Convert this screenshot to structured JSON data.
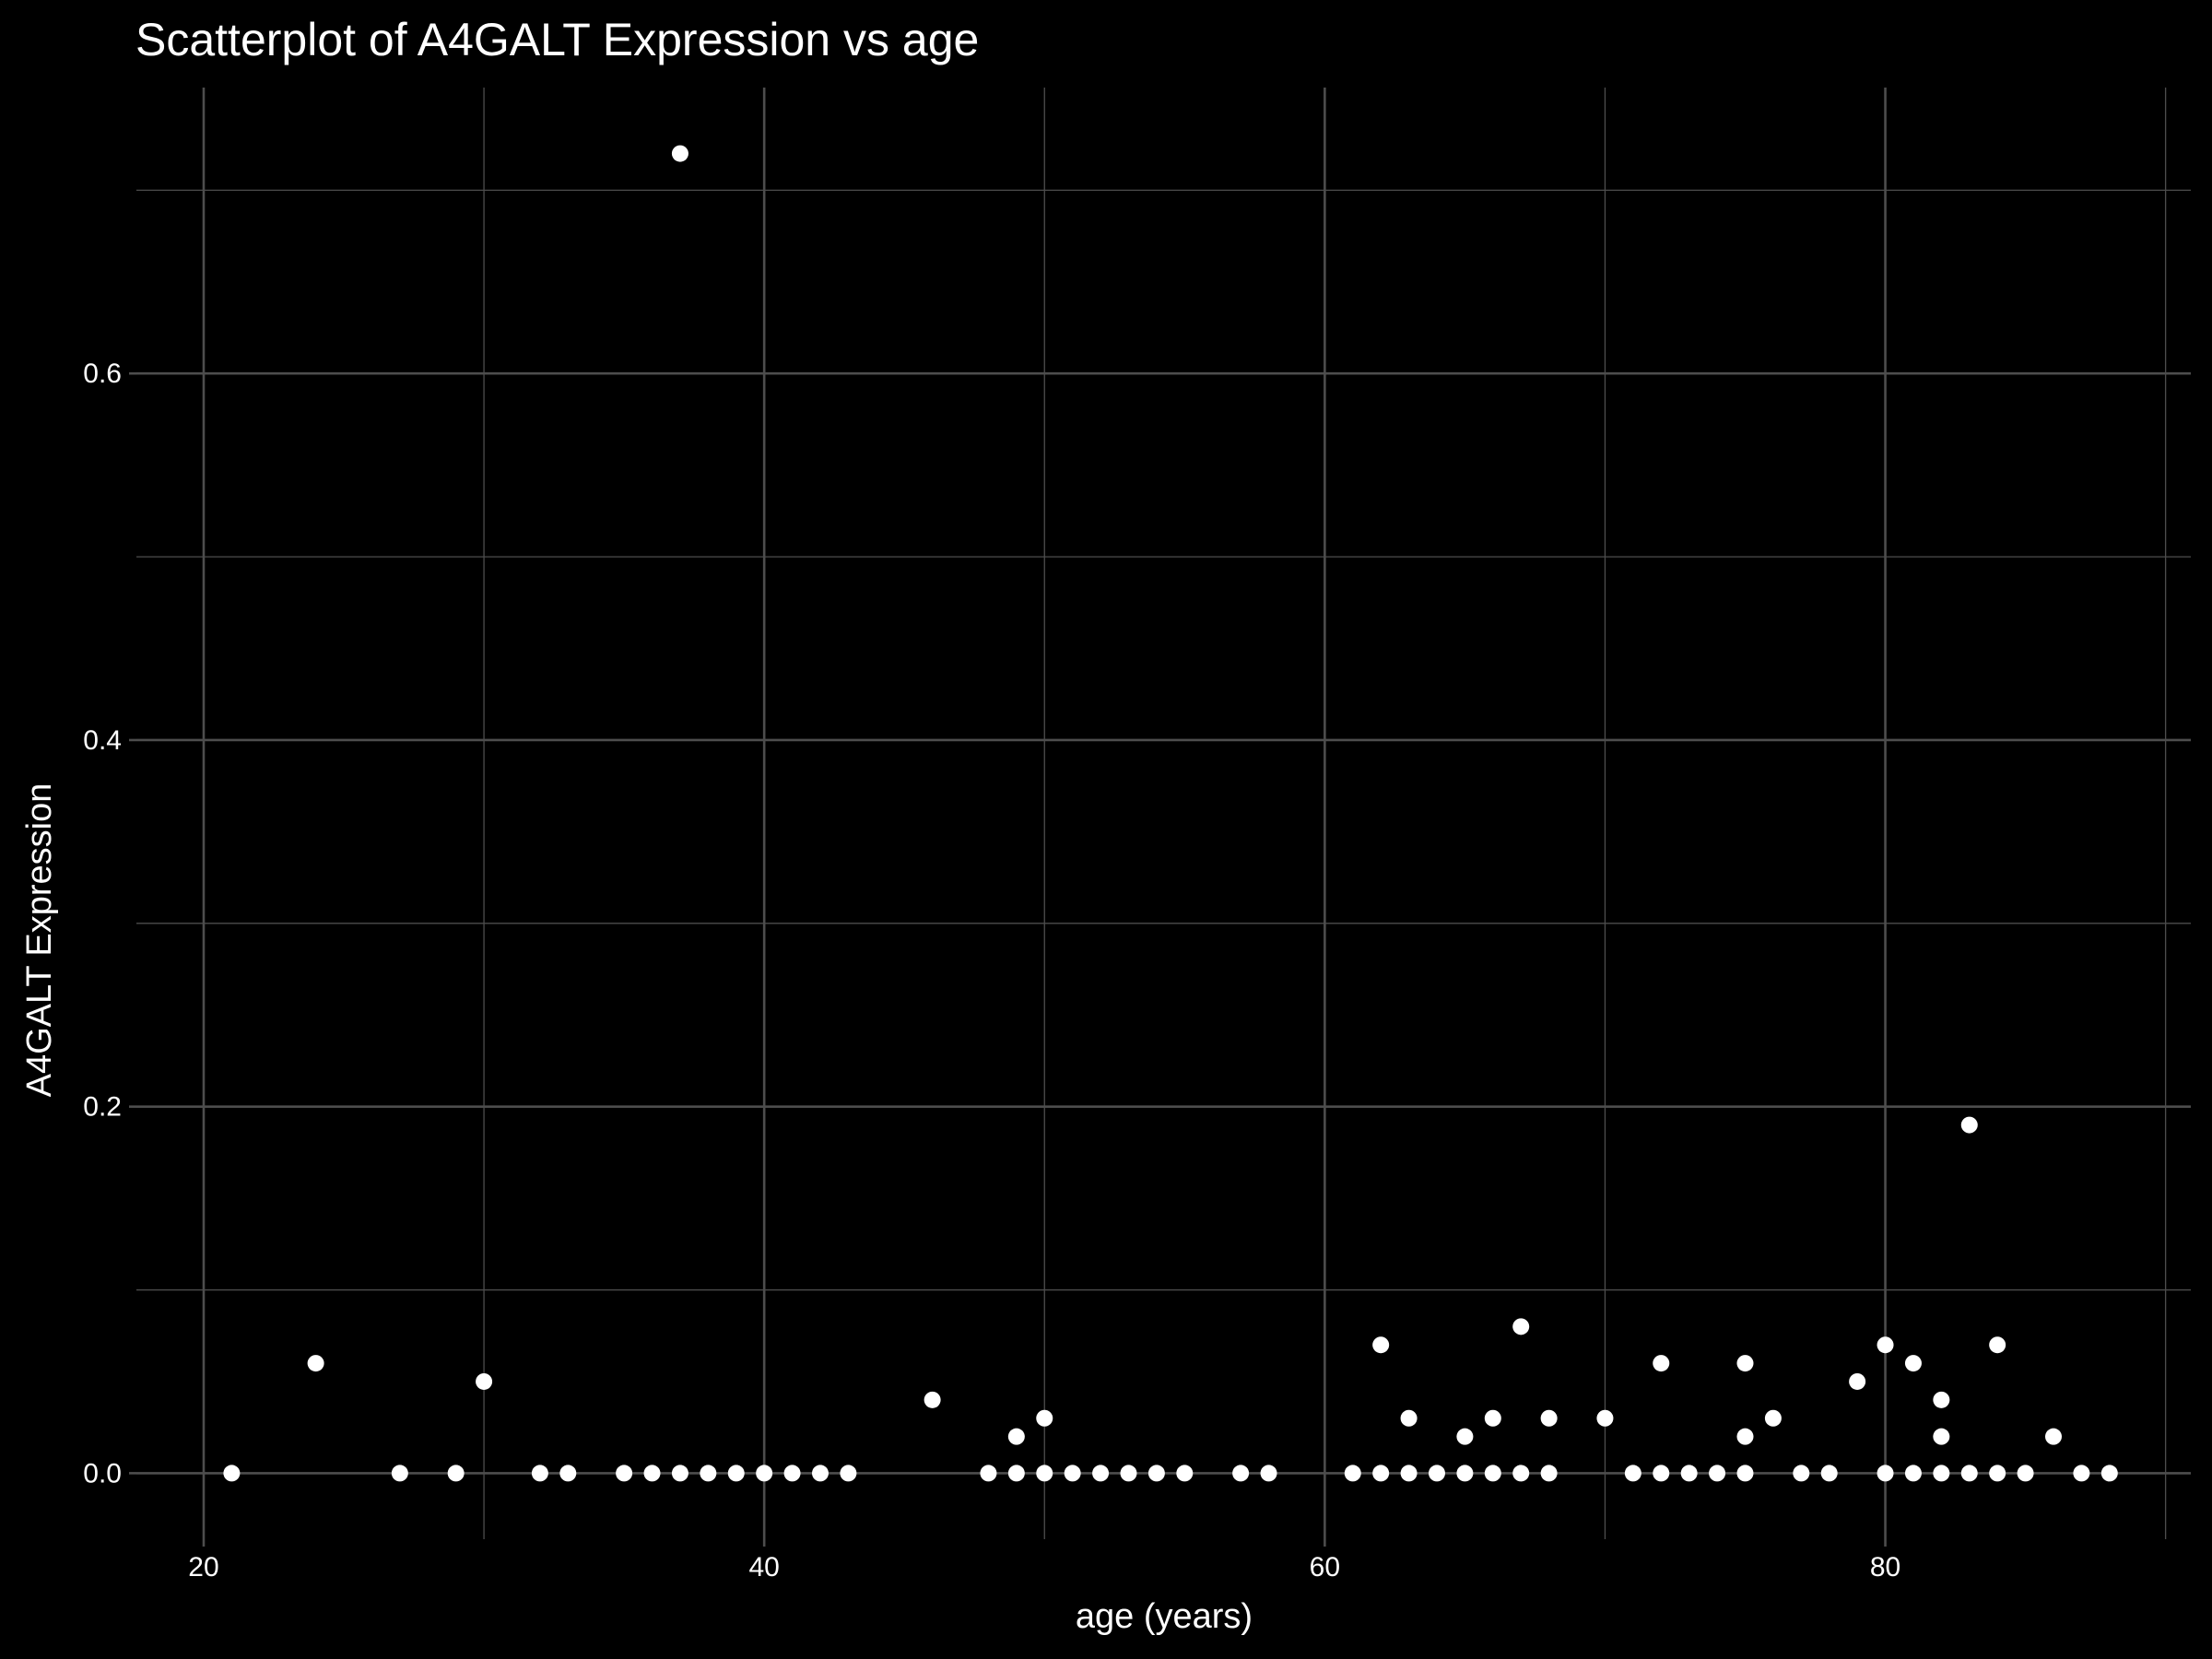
{
  "chart_data": {
    "type": "scatter",
    "title": "Scatterplot of A4GALT Expression vs age",
    "xlabel": "age (years)",
    "ylabel": "A4GALT Expression",
    "xlim": [
      17.6,
      90.9
    ],
    "ylim": [
      -0.036,
      0.756
    ],
    "x_ticks": [
      20,
      40,
      60,
      80
    ],
    "x_tick_labels": [
      "20",
      "40",
      "60",
      "80"
    ],
    "y_ticks": [
      0.0,
      0.2,
      0.4,
      0.6
    ],
    "y_tick_labels": [
      "0.0",
      "0.2",
      "0.4",
      "0.6"
    ],
    "grid": true,
    "colors": {
      "background": "#000000",
      "grid": "#4d4d4d",
      "point": "#ffffff",
      "text": "#ffffff"
    },
    "points": [
      {
        "x": 21,
        "y": 0
      },
      {
        "x": 24,
        "y": 0.06
      },
      {
        "x": 27,
        "y": 0
      },
      {
        "x": 29,
        "y": 0
      },
      {
        "x": 30,
        "y": 0.05
      },
      {
        "x": 32,
        "y": 0
      },
      {
        "x": 33,
        "y": 0
      },
      {
        "x": 35,
        "y": 0
      },
      {
        "x": 36,
        "y": 0
      },
      {
        "x": 37,
        "y": 0
      },
      {
        "x": 37,
        "y": 0.72
      },
      {
        "x": 38,
        "y": 0
      },
      {
        "x": 39,
        "y": 0
      },
      {
        "x": 40,
        "y": 0
      },
      {
        "x": 41,
        "y": 0
      },
      {
        "x": 42,
        "y": 0
      },
      {
        "x": 43,
        "y": 0
      },
      {
        "x": 46,
        "y": 0.04
      },
      {
        "x": 48,
        "y": 0
      },
      {
        "x": 49,
        "y": 0
      },
      {
        "x": 49,
        "y": 0.02
      },
      {
        "x": 50,
        "y": 0
      },
      {
        "x": 50,
        "y": 0.03
      },
      {
        "x": 51,
        "y": 0
      },
      {
        "x": 52,
        "y": 0
      },
      {
        "x": 53,
        "y": 0
      },
      {
        "x": 54,
        "y": 0
      },
      {
        "x": 55,
        "y": 0
      },
      {
        "x": 57,
        "y": 0
      },
      {
        "x": 58,
        "y": 0
      },
      {
        "x": 61,
        "y": 0
      },
      {
        "x": 62,
        "y": 0
      },
      {
        "x": 62,
        "y": 0.07
      },
      {
        "x": 63,
        "y": 0
      },
      {
        "x": 63,
        "y": 0.03
      },
      {
        "x": 64,
        "y": 0
      },
      {
        "x": 65,
        "y": 0
      },
      {
        "x": 65,
        "y": 0.02
      },
      {
        "x": 66,
        "y": 0
      },
      {
        "x": 66,
        "y": 0.03
      },
      {
        "x": 67,
        "y": 0
      },
      {
        "x": 67,
        "y": 0.08
      },
      {
        "x": 68,
        "y": 0
      },
      {
        "x": 68,
        "y": 0.03
      },
      {
        "x": 70,
        "y": 0.03
      },
      {
        "x": 71,
        "y": 0
      },
      {
        "x": 72,
        "y": 0
      },
      {
        "x": 72,
        "y": 0.06
      },
      {
        "x": 73,
        "y": 0
      },
      {
        "x": 74,
        "y": 0
      },
      {
        "x": 75,
        "y": 0
      },
      {
        "x": 75,
        "y": 0.02
      },
      {
        "x": 75,
        "y": 0.06
      },
      {
        "x": 76,
        "y": 0.03
      },
      {
        "x": 77,
        "y": 0
      },
      {
        "x": 78,
        "y": 0
      },
      {
        "x": 79,
        "y": 0.05
      },
      {
        "x": 80,
        "y": 0
      },
      {
        "x": 80,
        "y": 0.07
      },
      {
        "x": 81,
        "y": 0
      },
      {
        "x": 81,
        "y": 0.06
      },
      {
        "x": 82,
        "y": 0
      },
      {
        "x": 82,
        "y": 0.02
      },
      {
        "x": 82,
        "y": 0.04
      },
      {
        "x": 83,
        "y": 0
      },
      {
        "x": 83,
        "y": 0.19
      },
      {
        "x": 84,
        "y": 0
      },
      {
        "x": 84,
        "y": 0.07
      },
      {
        "x": 85,
        "y": 0
      },
      {
        "x": 86,
        "y": 0.02
      },
      {
        "x": 87,
        "y": 0
      },
      {
        "x": 88,
        "y": 0
      }
    ]
  }
}
